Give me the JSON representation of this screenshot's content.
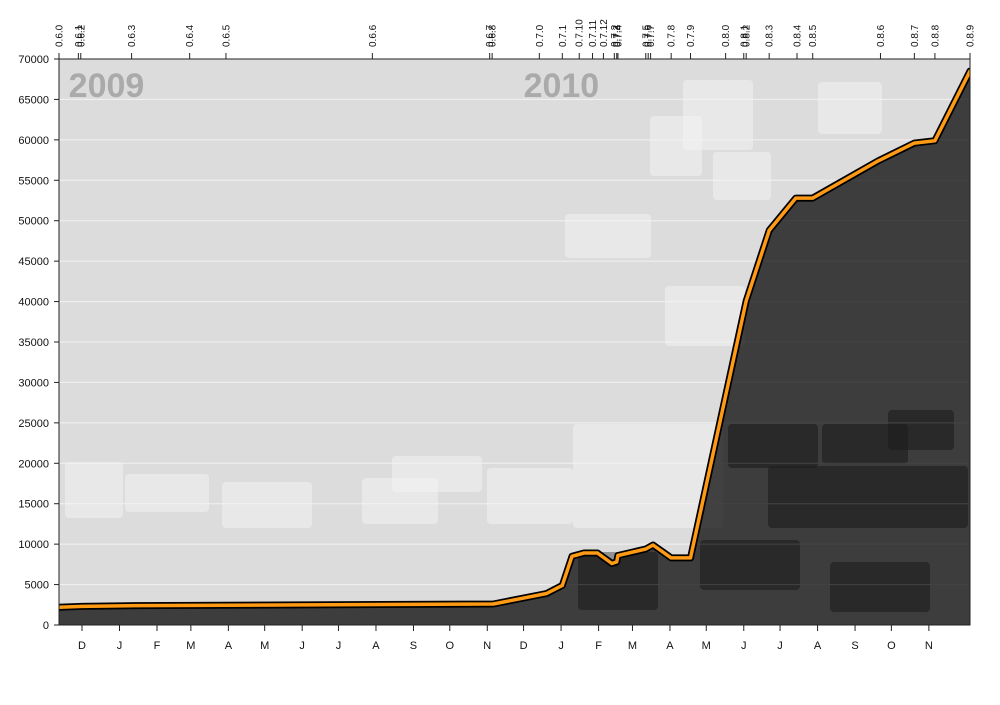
{
  "chart_data": {
    "type": "area",
    "title": "",
    "xlabel": "",
    "ylabel": "",
    "ylim": [
      0,
      70000
    ],
    "xlim": [
      "2008-11-12",
      "2010-12-05"
    ],
    "grid": true,
    "y_ticks": [
      0,
      5000,
      10000,
      15000,
      20000,
      25000,
      30000,
      35000,
      40000,
      45000,
      50000,
      55000,
      60000,
      65000,
      70000
    ],
    "month_ticks": [
      {
        "label": "D",
        "date": "2008-12-01"
      },
      {
        "label": "J",
        "date": "2009-01-01"
      },
      {
        "label": "F",
        "date": "2009-02-01"
      },
      {
        "label": "M",
        "date": "2009-03-01"
      },
      {
        "label": "A",
        "date": "2009-04-01"
      },
      {
        "label": "M",
        "date": "2009-05-01"
      },
      {
        "label": "J",
        "date": "2009-06-01"
      },
      {
        "label": "J",
        "date": "2009-07-01"
      },
      {
        "label": "A",
        "date": "2009-08-01"
      },
      {
        "label": "S",
        "date": "2009-09-01"
      },
      {
        "label": "O",
        "date": "2009-10-01"
      },
      {
        "label": "N",
        "date": "2009-11-01"
      },
      {
        "label": "D",
        "date": "2009-12-01"
      },
      {
        "label": "J",
        "date": "2010-01-01"
      },
      {
        "label": "F",
        "date": "2010-02-01"
      },
      {
        "label": "M",
        "date": "2010-03-01"
      },
      {
        "label": "A",
        "date": "2010-04-01"
      },
      {
        "label": "M",
        "date": "2010-05-01"
      },
      {
        "label": "J",
        "date": "2010-06-01"
      },
      {
        "label": "J",
        "date": "2010-07-01"
      },
      {
        "label": "A",
        "date": "2010-08-01"
      },
      {
        "label": "S",
        "date": "2010-09-01"
      },
      {
        "label": "O",
        "date": "2010-10-01"
      },
      {
        "label": "N",
        "date": "2010-11-01"
      }
    ],
    "year_labels": [
      {
        "label": "2009",
        "date": "2008-11-20"
      },
      {
        "label": "2010",
        "date": "2009-12-01"
      }
    ],
    "versions": [
      {
        "label": "0.6.0",
        "date": "2008-11-12"
      },
      {
        "label": "0.6.1",
        "date": "2008-11-28"
      },
      {
        "label": "0.6.2",
        "date": "2008-11-30"
      },
      {
        "label": "0.6.3",
        "date": "2009-01-11"
      },
      {
        "label": "0.6.4",
        "date": "2009-02-28"
      },
      {
        "label": "0.6.5",
        "date": "2009-03-30"
      },
      {
        "label": "0.6.6",
        "date": "2009-07-29"
      },
      {
        "label": "0.6.7",
        "date": "2009-11-03"
      },
      {
        "label": "0.6.8",
        "date": "2009-11-05"
      },
      {
        "label": "0.7.0",
        "date": "2009-12-14"
      },
      {
        "label": "0.7.1",
        "date": "2010-01-02"
      },
      {
        "label": "0.7.10",
        "date": "2010-01-16"
      },
      {
        "label": "0.7.11",
        "date": "2010-01-27"
      },
      {
        "label": "0.7.12",
        "date": "2010-02-05"
      },
      {
        "label": "0.7.2",
        "date": "2010-02-14"
      },
      {
        "label": "0.7.3",
        "date": "2010-02-16"
      },
      {
        "label": "0.7.4",
        "date": "2010-02-17"
      },
      {
        "label": "0.7.5",
        "date": "2010-03-12"
      },
      {
        "label": "0.7.6",
        "date": "2010-03-14"
      },
      {
        "label": "0.7.7",
        "date": "2010-03-16"
      },
      {
        "label": "0.7.8",
        "date": "2010-04-02"
      },
      {
        "label": "0.7.9",
        "date": "2010-04-18"
      },
      {
        "label": "0.8.0",
        "date": "2010-05-17"
      },
      {
        "label": "0.8.1",
        "date": "2010-06-01"
      },
      {
        "label": "0.8.2",
        "date": "2010-06-03"
      },
      {
        "label": "0.8.3",
        "date": "2010-06-22"
      },
      {
        "label": "0.8.4",
        "date": "2010-07-15"
      },
      {
        "label": "0.8.5",
        "date": "2010-07-28"
      },
      {
        "label": "0.8.6",
        "date": "2010-09-22"
      },
      {
        "label": "0.8.7",
        "date": "2010-10-20"
      },
      {
        "label": "0.8.8",
        "date": "2010-11-06"
      },
      {
        "label": "0.8.9",
        "date": "2010-12-05"
      }
    ],
    "series": [
      {
        "values": [
          {
            "x": "2008-11-12",
            "y": 2200
          },
          {
            "x": "2008-12-01",
            "y": 2300
          },
          {
            "x": "2009-01-15",
            "y": 2400
          },
          {
            "x": "2009-11-06",
            "y": 2600
          },
          {
            "x": "2009-12-20",
            "y": 3900
          },
          {
            "x": "2010-01-02",
            "y": 4900
          },
          {
            "x": "2010-01-10",
            "y": 8500
          },
          {
            "x": "2010-01-20",
            "y": 8900
          },
          {
            "x": "2010-01-31",
            "y": 8900
          },
          {
            "x": "2010-02-12",
            "y": 7600
          },
          {
            "x": "2010-02-16",
            "y": 7800
          },
          {
            "x": "2010-02-17",
            "y": 8600
          },
          {
            "x": "2010-03-12",
            "y": 9400
          },
          {
            "x": "2010-03-18",
            "y": 9900
          },
          {
            "x": "2010-04-02",
            "y": 8300
          },
          {
            "x": "2010-04-18",
            "y": 8300
          },
          {
            "x": "2010-06-03",
            "y": 40100
          },
          {
            "x": "2010-06-22",
            "y": 48800
          },
          {
            "x": "2010-07-14",
            "y": 52800
          },
          {
            "x": "2010-07-28",
            "y": 52800
          },
          {
            "x": "2010-09-20",
            "y": 57400
          },
          {
            "x": "2010-10-20",
            "y": 59600
          },
          {
            "x": "2010-11-06",
            "y": 59900
          },
          {
            "x": "2010-12-05",
            "y": 68500
          }
        ]
      }
    ]
  },
  "colors": {
    "plot_background": "#dcdcdc",
    "area_fill": "#000000",
    "line_outline": "#000000",
    "line_color": "#ff9a14",
    "grid": "#f2f2f2"
  }
}
